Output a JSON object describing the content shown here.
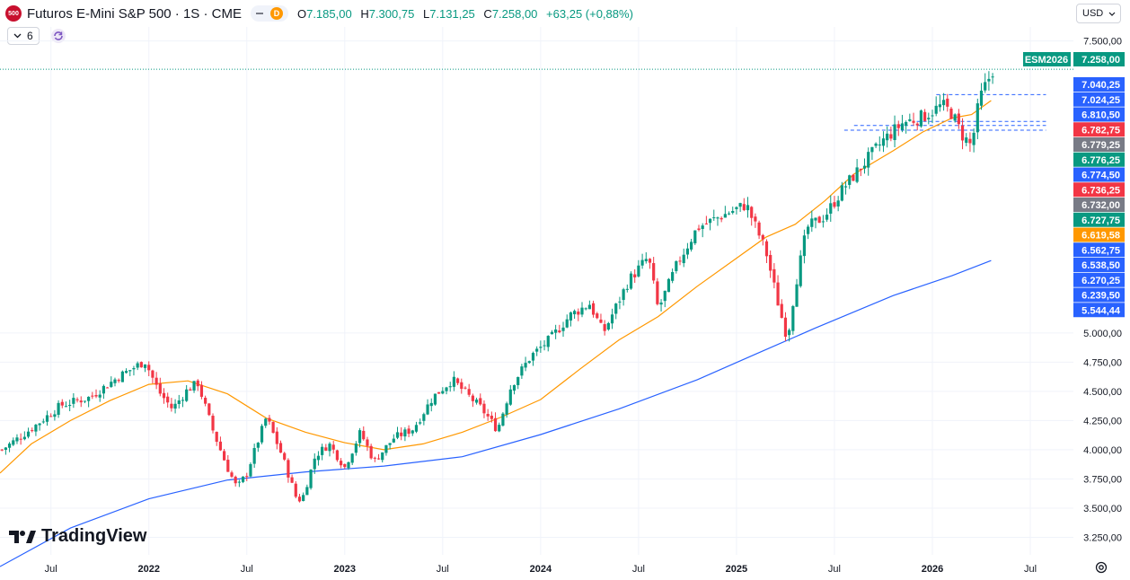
{
  "header": {
    "badge": "500",
    "title": "Futuros E-Mini S&P 500 · 1S · CME",
    "d_badge": "D",
    "ohlc": [
      {
        "k": "O",
        "v": "7.185,00"
      },
      {
        "k": "H",
        "v": "7.300,75"
      },
      {
        "k": "L",
        "v": "7.131,25"
      },
      {
        "k": "C",
        "v": "7.258,00"
      }
    ],
    "change": "+63,25 (+0,88%)",
    "indicator_count": "6",
    "currency": "USD"
  },
  "logo": "TradingView",
  "colors": {
    "up": "#089981",
    "down": "#f23645",
    "ma_fast": "#ff9800",
    "ma_slow": "#2962ff",
    "blue_label": "#2962ff"
  },
  "chart_data": {
    "type": "candlestick",
    "ylim": [
      3100,
      7620
    ],
    "yticks": [
      7500,
      5000,
      4750,
      4500,
      4250,
      4000,
      3750,
      3500,
      3250
    ],
    "ytick_labels": [
      "7.500,00",
      "5.000,00",
      "4.750,00",
      "4.500,00",
      "4.250,00",
      "4.000,00",
      "3.750,00",
      "3.500,00",
      "3.250,00"
    ],
    "xticks": [
      {
        "label": "Jul",
        "t": 2021.5
      },
      {
        "label": "2022",
        "t": 2022.0
      },
      {
        "label": "Jul",
        "t": 2022.5
      },
      {
        "label": "2023",
        "t": 2023.0
      },
      {
        "label": "Jul",
        "t": 2023.5
      },
      {
        "label": "2024",
        "t": 2024.0
      },
      {
        "label": "Jul",
        "t": 2024.5
      },
      {
        "label": "2025",
        "t": 2025.0
      },
      {
        "label": "Jul",
        "t": 2025.5
      },
      {
        "label": "2026",
        "t": 2026.0
      },
      {
        "label": "Jul",
        "t": 2026.5
      }
    ],
    "xlim": [
      2021.24,
      2026.72
    ],
    "price_path": [
      [
        2021.25,
        4000
      ],
      [
        2021.4,
        4180
      ],
      [
        2021.55,
        4380
      ],
      [
        2021.7,
        4450
      ],
      [
        2021.85,
        4630
      ],
      [
        2021.98,
        4760
      ],
      [
        2022.05,
        4500
      ],
      [
        2022.12,
        4350
      ],
      [
        2022.2,
        4520
      ],
      [
        2022.25,
        4570
      ],
      [
        2022.33,
        4150
      ],
      [
        2022.4,
        3850
      ],
      [
        2022.45,
        3670
      ],
      [
        2022.5,
        3800
      ],
      [
        2022.6,
        4280
      ],
      [
        2022.68,
        3950
      ],
      [
        2022.75,
        3600
      ],
      [
        2022.78,
        3560
      ],
      [
        2022.85,
        3950
      ],
      [
        2022.92,
        4050
      ],
      [
        2023.0,
        3850
      ],
      [
        2023.08,
        4150
      ],
      [
        2023.15,
        3900
      ],
      [
        2023.25,
        4100
      ],
      [
        2023.35,
        4180
      ],
      [
        2023.45,
        4450
      ],
      [
        2023.55,
        4600
      ],
      [
        2023.62,
        4480
      ],
      [
        2023.7,
        4350
      ],
      [
        2023.78,
        4170
      ],
      [
        2023.85,
        4550
      ],
      [
        2023.95,
        4800
      ],
      [
        2024.05,
        4950
      ],
      [
        2024.15,
        5150
      ],
      [
        2024.25,
        5250
      ],
      [
        2024.32,
        5000
      ],
      [
        2024.45,
        5450
      ],
      [
        2024.55,
        5650
      ],
      [
        2024.6,
        5200
      ],
      [
        2024.7,
        5600
      ],
      [
        2024.8,
        5900
      ],
      [
        2024.92,
        6000
      ],
      [
        2025.05,
        6100
      ],
      [
        2025.15,
        5700
      ],
      [
        2025.22,
        5200
      ],
      [
        2025.26,
        4950
      ],
      [
        2025.3,
        5400
      ],
      [
        2025.36,
        5900
      ],
      [
        2025.45,
        6000
      ],
      [
        2025.55,
        6250
      ],
      [
        2025.65,
        6450
      ],
      [
        2025.75,
        6650
      ],
      [
        2025.85,
        6800
      ],
      [
        2025.95,
        6850
      ],
      [
        2026.05,
        6950
      ],
      [
        2026.1,
        6880
      ],
      [
        2026.15,
        6700
      ],
      [
        2026.2,
        6600
      ],
      [
        2026.24,
        7000
      ],
      [
        2026.28,
        7150
      ],
      [
        2026.31,
        7258
      ]
    ],
    "series": [
      {
        "name": "",
        "color": "#ff9800",
        "points": [
          [
            2021.24,
            3800
          ],
          [
            2021.4,
            4050
          ],
          [
            2021.6,
            4250
          ],
          [
            2021.8,
            4420
          ],
          [
            2022.0,
            4560
          ],
          [
            2022.2,
            4590
          ],
          [
            2022.4,
            4480
          ],
          [
            2022.6,
            4270
          ],
          [
            2022.8,
            4150
          ],
          [
            2023.0,
            4060
          ],
          [
            2023.2,
            4000
          ],
          [
            2023.4,
            4050
          ],
          [
            2023.6,
            4150
          ],
          [
            2023.8,
            4280
          ],
          [
            2024.0,
            4430
          ],
          [
            2024.2,
            4690
          ],
          [
            2024.4,
            4940
          ],
          [
            2024.6,
            5140
          ],
          [
            2024.8,
            5400
          ],
          [
            2025.0,
            5640
          ],
          [
            2025.15,
            5820
          ],
          [
            2025.3,
            5930
          ],
          [
            2025.45,
            6130
          ],
          [
            2025.6,
            6360
          ],
          [
            2025.8,
            6560
          ],
          [
            2025.95,
            6720
          ],
          [
            2026.1,
            6840
          ],
          [
            2026.2,
            6870
          ],
          [
            2026.3,
            6990
          ]
        ]
      },
      {
        "name": "",
        "color": "#2962ff",
        "points": [
          [
            2021.24,
            3000
          ],
          [
            2021.6,
            3330
          ],
          [
            2022.0,
            3580
          ],
          [
            2022.4,
            3740
          ],
          [
            2022.8,
            3810
          ],
          [
            2023.2,
            3860
          ],
          [
            2023.6,
            3940
          ],
          [
            2024.0,
            4130
          ],
          [
            2024.4,
            4350
          ],
          [
            2024.8,
            4600
          ],
          [
            2025.1,
            4820
          ],
          [
            2025.4,
            5040
          ],
          [
            2025.8,
            5320
          ],
          [
            2026.1,
            5490
          ],
          [
            2026.3,
            5620
          ]
        ]
      }
    ],
    "last_price_line": 7258,
    "support_lines": [
      {
        "t0": 2026.02,
        "t1": 2026.58,
        "y": 7040.25
      },
      {
        "t0": 2025.92,
        "t1": 2026.58,
        "y": 6810.5
      },
      {
        "t0": 2025.6,
        "t1": 2026.58,
        "y": 6776.25
      },
      {
        "t0": 2025.55,
        "t1": 2026.58,
        "y": 6736.25
      }
    ],
    "labels": [
      {
        "text": "ESM2026",
        "color": "#089981"
      },
      {
        "text": "7.258,00",
        "color": "#089981"
      },
      {
        "text": "7.040,25",
        "color": "#2962ff"
      },
      {
        "text": "7.024,25",
        "color": "#2962ff"
      },
      {
        "text": "6.810,50",
        "color": "#2962ff"
      },
      {
        "text": "6.782,75",
        "color": "#f23645"
      },
      {
        "text": "6.779,25",
        "color": "#787b86"
      },
      {
        "text": "6.776,25",
        "color": "#089981"
      },
      {
        "text": "6.774,50",
        "color": "#2962ff"
      },
      {
        "text": "6.736,25",
        "color": "#f23645"
      },
      {
        "text": "6.732,00",
        "color": "#787b86"
      },
      {
        "text": "6.727,75",
        "color": "#089981"
      },
      {
        "text": "6.619,58",
        "color": "#ff9800"
      },
      {
        "text": "6.562,75",
        "color": "#2962ff"
      },
      {
        "text": "6.538,50",
        "color": "#2962ff"
      },
      {
        "text": "6.270,25",
        "color": "#2962ff"
      },
      {
        "text": "6.239,50",
        "color": "#2962ff"
      },
      {
        "text": "5.544,44",
        "color": "#2962ff"
      }
    ]
  }
}
